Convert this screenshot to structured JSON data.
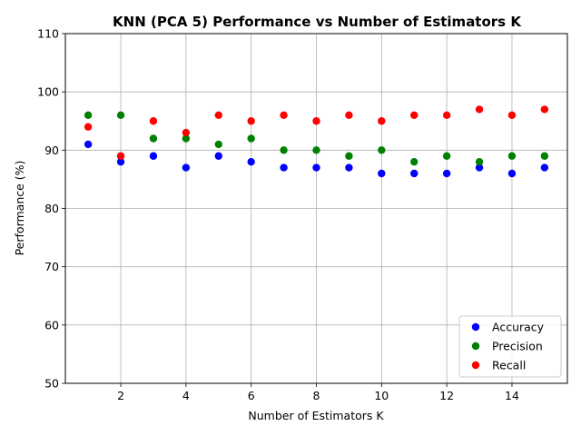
{
  "chart_data": {
    "type": "scatter",
    "title": "KNN (PCA 5) Performance vs Number of Estimators K",
    "xlabel": "Number of Estimators K",
    "ylabel": "Performance (%)",
    "xlim": [
      0.3,
      15.7
    ],
    "ylim": [
      50,
      110
    ],
    "xticks": [
      2,
      4,
      6,
      8,
      10,
      12,
      14
    ],
    "yticks": [
      50,
      60,
      70,
      80,
      90,
      100,
      110
    ],
    "grid": true,
    "legend_position": "lower-right",
    "x": [
      1,
      2,
      3,
      4,
      5,
      6,
      7,
      8,
      9,
      10,
      11,
      12,
      13,
      14,
      15
    ],
    "series": [
      {
        "name": "Accuracy",
        "color": "#0000ff",
        "values": [
          91,
          88,
          89,
          87,
          89,
          88,
          87,
          87,
          87,
          86,
          86,
          86,
          87,
          86,
          87
        ]
      },
      {
        "name": "Precision",
        "color": "#008000",
        "values": [
          96,
          96,
          92,
          92,
          91,
          92,
          90,
          90,
          89,
          90,
          88,
          89,
          88,
          89,
          89
        ]
      },
      {
        "name": "Recall",
        "color": "#ff0000",
        "values": [
          94,
          89,
          95,
          93,
          96,
          95,
          96,
          95,
          96,
          95,
          96,
          96,
          97,
          96,
          97
        ]
      }
    ]
  }
}
